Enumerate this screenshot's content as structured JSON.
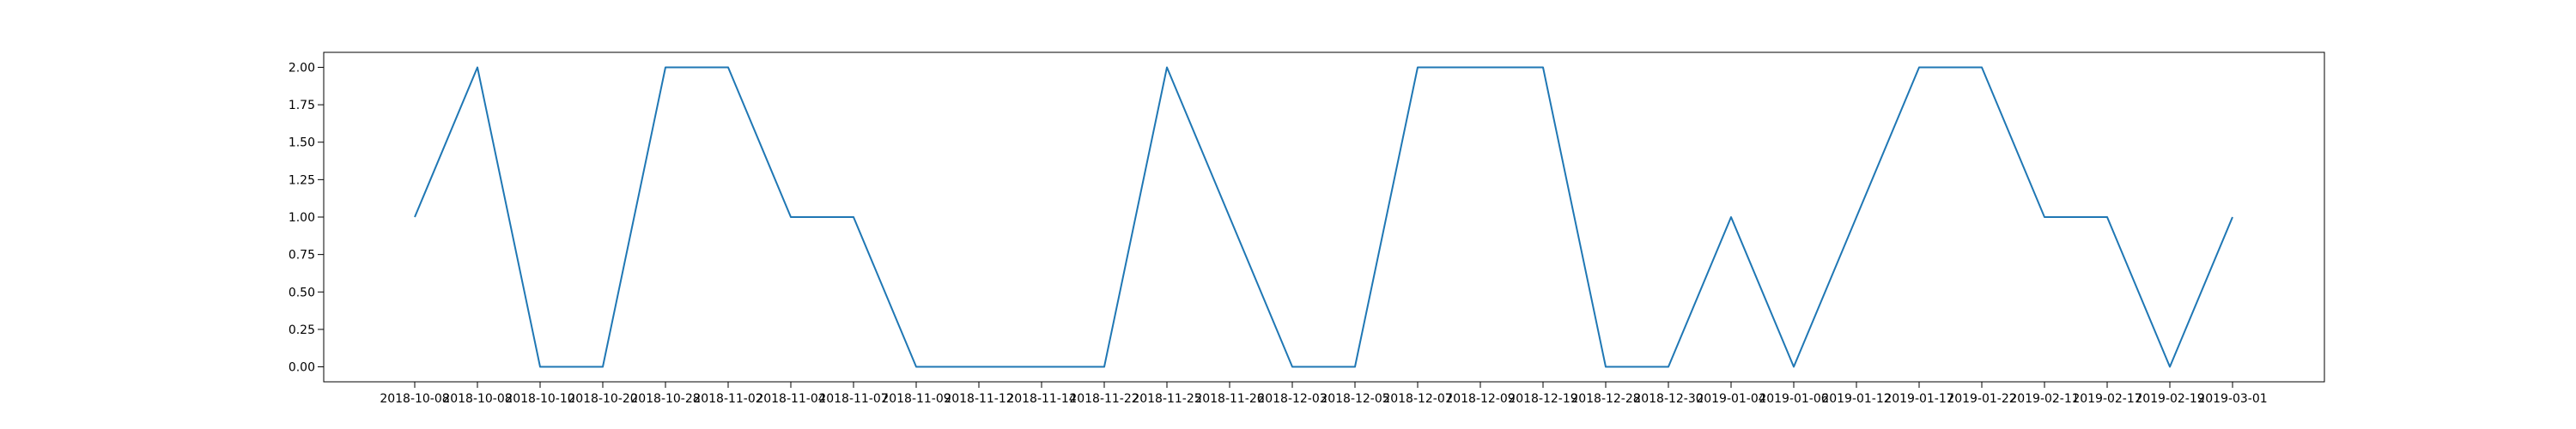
{
  "chart_data": {
    "type": "line",
    "title": "",
    "xlabel": "",
    "ylabel": "",
    "grid": false,
    "legend": "none",
    "ylim": [
      -0.1,
      2.1
    ],
    "yticks": [
      "0.00",
      "0.25",
      "0.50",
      "0.75",
      "1.00",
      "1.25",
      "1.50",
      "1.75",
      "2.00"
    ],
    "x": [
      "2018-10-08",
      "2018-10-08",
      "2018-10-10",
      "2018-10-20",
      "2018-10-28",
      "2018-11-02",
      "2018-11-04",
      "2018-11-07",
      "2018-11-09",
      "2018-11-12",
      "2018-11-14",
      "2018-11-22",
      "2018-11-25",
      "2018-11-26",
      "2018-12-03",
      "2018-12-05",
      "2018-12-07",
      "2018-12-09",
      "2018-12-19",
      "2018-12-28",
      "2018-12-30",
      "2019-01-04",
      "2019-01-06",
      "2019-01-12",
      "2019-01-17",
      "2019-01-22",
      "2019-02-11",
      "2019-02-17",
      "2019-02-19",
      "2019-03-01"
    ],
    "series": [
      {
        "color": "#1f77b4",
        "values": [
          1,
          2,
          0,
          0,
          2,
          2,
          1,
          1,
          0,
          0,
          0,
          0,
          2,
          1,
          0,
          0,
          2,
          2,
          2,
          0,
          0,
          1,
          0,
          1,
          2,
          2,
          1,
          1,
          0,
          1
        ]
      }
    ]
  }
}
